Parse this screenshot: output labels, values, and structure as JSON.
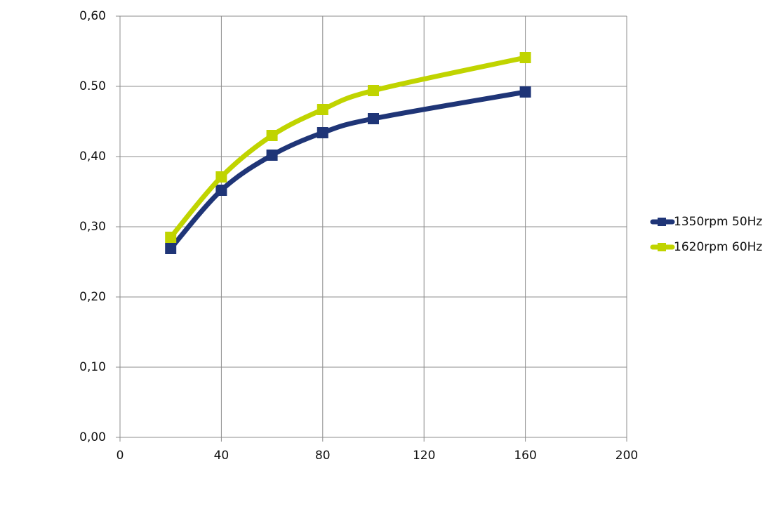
{
  "chart_data": {
    "type": "line",
    "x": [
      20,
      40,
      60,
      80,
      100,
      160
    ],
    "series": [
      {
        "name": "1350rpm 50Hz",
        "color": "#1f3577",
        "values": [
          0.269,
          0.352,
          0.402,
          0.434,
          0.454,
          0.492
        ]
      },
      {
        "name": "1620rpm 60Hz",
        "color": "#c0d400",
        "values": [
          0.285,
          0.371,
          0.43,
          0.467,
          0.494,
          0.541
        ]
      }
    ],
    "xlim": [
      0,
      200
    ],
    "xticks": [
      0,
      40,
      80,
      120,
      160,
      200
    ],
    "ylim": [
      0,
      0.6
    ],
    "yticks": [
      {
        "value": 0,
        "label": "0,00"
      },
      {
        "value": 0.1,
        "label": "0,10"
      },
      {
        "value": 0.2,
        "label": "0,20"
      },
      {
        "value": 0.3,
        "label": "0,30"
      },
      {
        "value": 0.4,
        "label": "0,40"
      },
      {
        "value": 0.5,
        "label": "0.50"
      },
      {
        "value": 0.6,
        "label": "0,60"
      }
    ],
    "grid": true,
    "smooth": true,
    "legend": "right"
  }
}
